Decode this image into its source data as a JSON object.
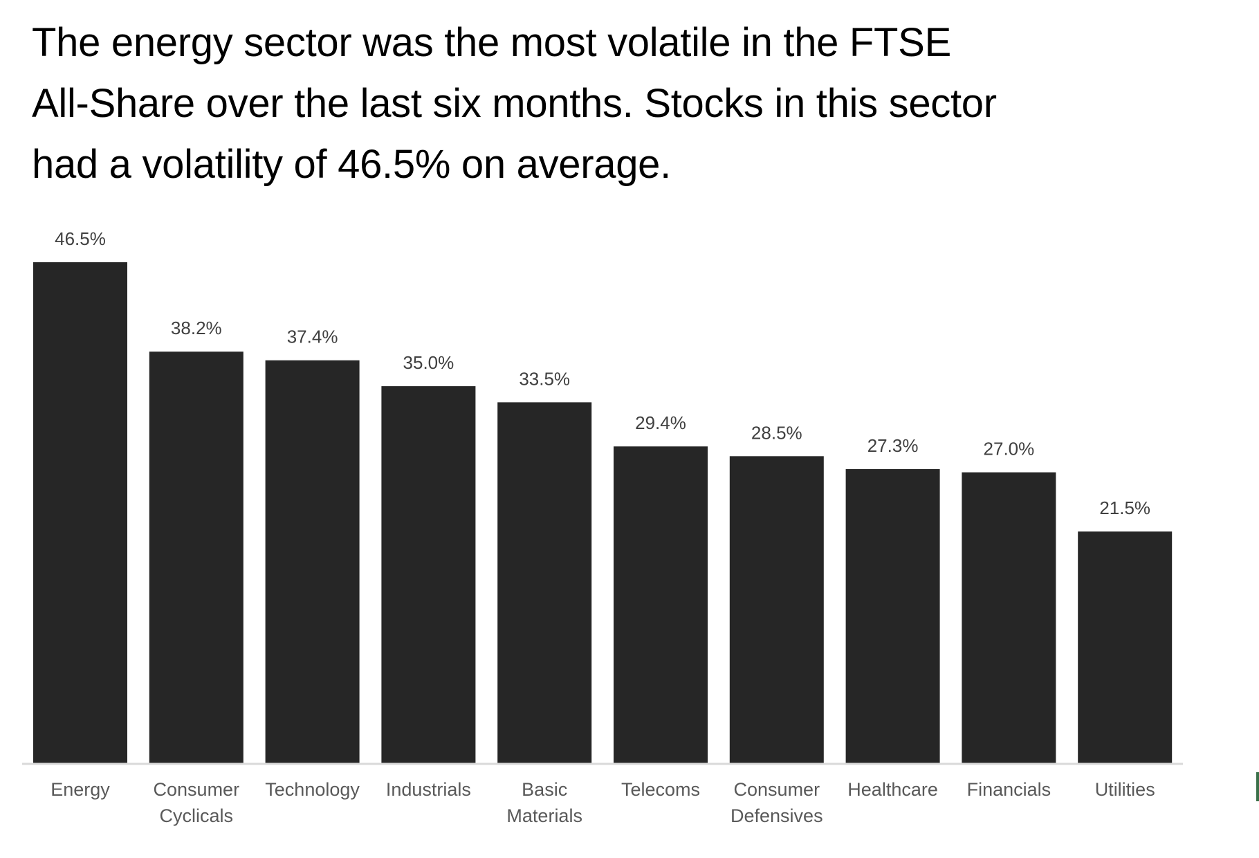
{
  "title": {
    "lines": [
      "The energy sector was the most volatile in the FTSE",
      "All-Share over the last six months. Stocks in this sector",
      "had a volatility of 46.5% on average."
    ]
  },
  "colors": {
    "bar": "#262626",
    "axis": "#d9d9d9",
    "data_label": "#404040",
    "category_label": "#595959",
    "edge_mark": "#3a7049"
  },
  "chart_data": {
    "type": "bar",
    "title": "The energy sector was the most volatile in the FTSE All-Share over the last six months. Stocks in this sector had a volatility of 46.5% on average.",
    "xlabel": "",
    "ylabel": "",
    "ylim": [
      0,
      46.5
    ],
    "grid": false,
    "legend": "none",
    "categories": [
      [
        "Energy"
      ],
      [
        "Consumer",
        "Cyclicals"
      ],
      [
        "Technology"
      ],
      [
        "Industrials"
      ],
      [
        "Basic",
        "Materials"
      ],
      [
        "Telecoms"
      ],
      [
        "Consumer",
        "Defensives"
      ],
      [
        "Healthcare"
      ],
      [
        "Financials"
      ],
      [
        "Utilities"
      ]
    ],
    "values": [
      46.5,
      38.2,
      37.4,
      35.0,
      33.5,
      29.4,
      28.5,
      27.3,
      27.0,
      21.5
    ],
    "data_labels": [
      "46.5%",
      "38.2%",
      "37.4%",
      "35.0%",
      "33.5%",
      "29.4%",
      "28.5%",
      "27.3%",
      "27.0%",
      "21.5%"
    ]
  }
}
